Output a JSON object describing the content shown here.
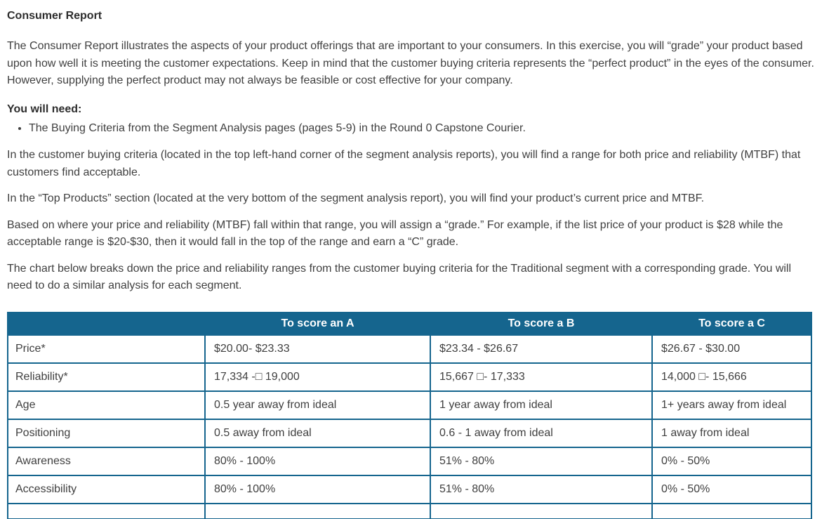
{
  "doc": {
    "title": "Consumer Report",
    "paragraphs": [
      "The Consumer Report illustrates the aspects of your product offerings that are important to your consumers. In this exercise, you will “grade” your product based upon how well it is meeting the customer expectations. Keep in mind that the customer buying criteria represents the “perfect product” in the eyes of the consumer. However, supplying the perfect product may not always be feasible or cost effective for your company.",
      "In the customer buying criteria (located in the top left-hand corner of the segment analysis reports), you will find a range for both price and reliability (MTBF) that customers find acceptable.",
      "In the “Top Products” section (located at the very bottom of the segment analysis report), you will find your product’s current price and MTBF.",
      "Based on where your price and reliability (MTBF) fall within that range, you will assign a “grade.” For example, if the list price of your product is $28 while the acceptable range is $20-$30, then it would fall in the top of the range and earn a “C” grade.",
      "The chart below breaks down the price and reliability ranges from the customer buying criteria for the Traditional segment with a corresponding grade. You will need to do a similar analysis for each segment."
    ],
    "need_heading": "You will need:",
    "need_items": [
      "The Buying Criteria from the Segment Analysis pages (pages 5-9) in the Round 0 Capstone Courier."
    ]
  },
  "table": {
    "headers": [
      "",
      "To score an A",
      "To score a B",
      "To score a C"
    ],
    "rows": [
      [
        "Price*",
        "$20.00- $23.33",
        "$23.34 - $26.67",
        "$26.67 - $30.00"
      ],
      [
        "Reliability*",
        "17,334 -□ 19,000",
        "15,667 □- 17,333",
        "14,000 □- 15,666"
      ],
      [
        "Age",
        "0.5 year away from ideal",
        "1 year away from ideal",
        "1+  years away from ideal"
      ],
      [
        "Positioning",
        "0.5 away from ideal",
        "0.6 - 1 away from ideal",
        "1 away from ideal"
      ],
      [
        "Awareness",
        "80% - 100%",
        "51% - 80%",
        "0% - 50%"
      ],
      [
        "Accessibility",
        "80% - 100%",
        "51% - 80%",
        "0% - 50%"
      ]
    ]
  },
  "colors": {
    "table_accent": "#15658e",
    "header_text": "#ffffff",
    "body_text": "#3f3f3f"
  }
}
